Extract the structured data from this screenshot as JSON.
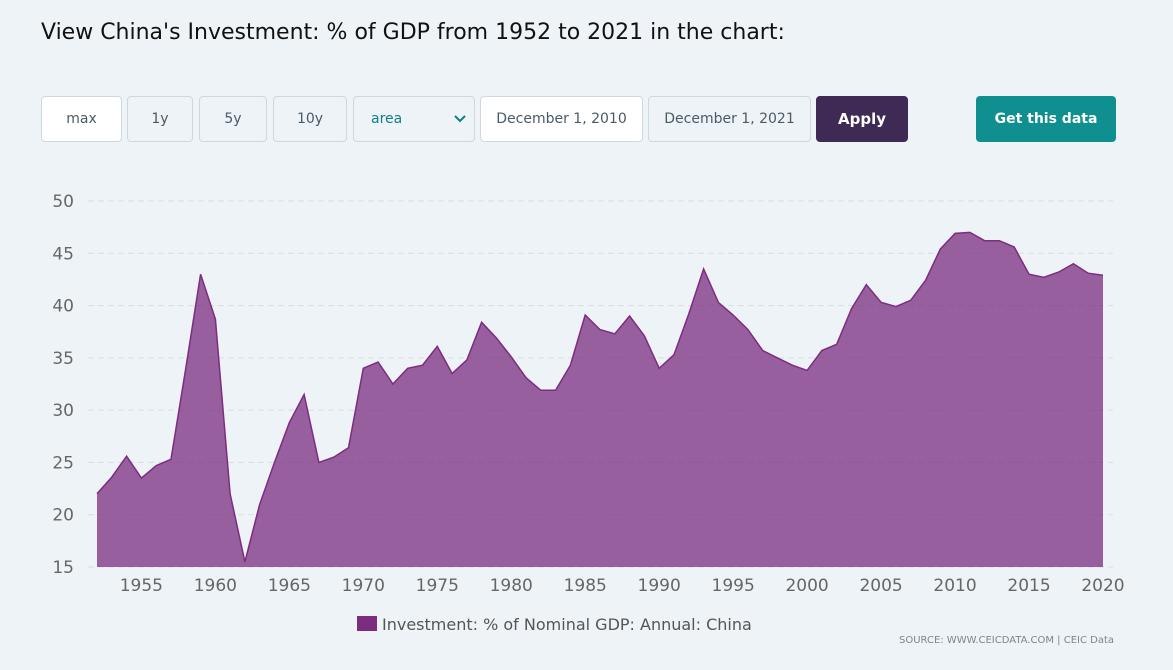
{
  "header": {
    "title": "View China's Investment: % of GDP from 1952 to 2021 in the chart:"
  },
  "controls": {
    "ranges": [
      "max",
      "1y",
      "5y",
      "10y"
    ],
    "chart_type": "area",
    "start_date": "December 1, 2010",
    "end_date": "December 1, 2021",
    "apply": "Apply",
    "get_data": "Get this data"
  },
  "source": "SOURCE: WWW.CEICDATA.COM | CEIC Data",
  "chart_data": {
    "type": "area",
    "x": [
      1952,
      1953,
      1954,
      1955,
      1956,
      1957,
      1958,
      1959,
      1960,
      1961,
      1962,
      1963,
      1964,
      1965,
      1966,
      1967,
      1968,
      1969,
      1970,
      1971,
      1972,
      1973,
      1974,
      1975,
      1976,
      1977,
      1978,
      1979,
      1980,
      1981,
      1982,
      1983,
      1984,
      1985,
      1986,
      1987,
      1988,
      1989,
      1990,
      1991,
      1992,
      1993,
      1994,
      1995,
      1996,
      1997,
      1998,
      1999,
      2000,
      2001,
      2002,
      2003,
      2004,
      2005,
      2006,
      2007,
      2008,
      2009,
      2010,
      2011,
      2012,
      2013,
      2014,
      2015,
      2016,
      2017,
      2018,
      2019,
      2020
    ],
    "series": [
      {
        "name": "Investment: % of Nominal GDP: Annual: China",
        "color": "#7b2d80",
        "values": [
          22.0,
          23.6,
          25.6,
          23.5,
          24.7,
          25.3,
          34,
          43,
          38.7,
          22,
          15.5,
          21,
          25,
          28.8,
          31.5,
          25,
          25.5,
          26.4,
          34,
          34.6,
          32.5,
          34,
          34.3,
          36.1,
          33.5,
          34.8,
          38.4,
          36.9,
          35.1,
          33.1,
          31.9,
          31.9,
          34.3,
          39.1,
          37.7,
          37.3,
          39,
          37.1,
          34,
          35.3,
          39.2,
          43.5,
          40.3,
          39.1,
          37.7,
          35.7,
          35,
          34.3,
          33.8,
          35.7,
          36.3,
          39.7,
          42,
          40.3,
          39.9,
          40.5,
          42.4,
          45.4,
          46.9,
          47,
          46.2,
          46.2,
          45.6,
          43,
          42.7,
          43.2,
          44,
          43.1,
          42.9
        ]
      }
    ],
    "xlim": [
      1952,
      2020
    ],
    "xticks": [
      1955,
      1960,
      1965,
      1970,
      1975,
      1980,
      1985,
      1990,
      1995,
      2000,
      2005,
      2010,
      2015,
      2020
    ],
    "ylim": [
      15,
      50
    ],
    "yticks": [
      15,
      20,
      25,
      30,
      35,
      40,
      45,
      50
    ],
    "grid": true
  }
}
